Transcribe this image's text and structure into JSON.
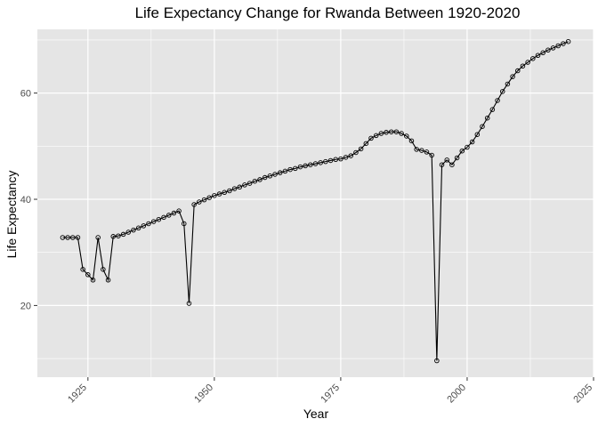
{
  "chart_data": {
    "type": "line",
    "title": "Life Expectancy Change for Rwanda Between 1920-2020",
    "xlabel": "Year",
    "ylabel": "Life Expectancy",
    "xlim": [
      1915,
      2025
    ],
    "ylim": [
      6.5,
      72.0
    ],
    "x_ticks": [
      1925,
      1950,
      1975,
      2000,
      2025
    ],
    "y_ticks": [
      20,
      40,
      60
    ],
    "grid": true,
    "background": "#e5e5e5",
    "grid_color": "#ffffff",
    "line_color": "#000000",
    "marker": "open-circle",
    "series": [
      {
        "x": [
          1920,
          1921,
          1922,
          1923,
          1924,
          1925,
          1926,
          1927,
          1928,
          1929,
          1930,
          1931,
          1932,
          1933,
          1934,
          1935,
          1936,
          1937,
          1938,
          1939,
          1940,
          1941,
          1942,
          1943,
          1944,
          1945,
          1946,
          1947,
          1948,
          1949,
          1950,
          1951,
          1952,
          1953,
          1954,
          1955,
          1956,
          1957,
          1958,
          1959,
          1960,
          1961,
          1962,
          1963,
          1964,
          1965,
          1966,
          1967,
          1968,
          1969,
          1970,
          1971,
          1972,
          1973,
          1974,
          1975,
          1976,
          1977,
          1978,
          1979,
          1980,
          1981,
          1982,
          1983,
          1984,
          1985,
          1986,
          1987,
          1988,
          1989,
          1990,
          1991,
          1992,
          1993,
          1994,
          1995,
          1996,
          1997,
          1998,
          1999,
          2000,
          2001,
          2002,
          2003,
          2004,
          2005,
          2006,
          2007,
          2008,
          2009,
          2010,
          2011,
          2012,
          2013,
          2014,
          2015,
          2016,
          2017,
          2018,
          2019,
          2020
        ],
        "y": [
          32.8,
          32.8,
          32.8,
          32.8,
          26.8,
          25.8,
          24.8,
          32.8,
          26.8,
          24.8,
          33.0,
          33.1,
          33.4,
          33.8,
          34.2,
          34.6,
          35.0,
          35.4,
          35.8,
          36.2,
          36.6,
          37.0,
          37.4,
          37.8,
          35.4,
          20.4,
          39.0,
          39.5,
          39.9,
          40.3,
          40.7,
          41.0,
          41.3,
          41.6,
          42.0,
          42.3,
          42.7,
          43.0,
          43.4,
          43.7,
          44.1,
          44.4,
          44.7,
          45.0,
          45.3,
          45.6,
          45.8,
          46.1,
          46.3,
          46.5,
          46.7,
          46.9,
          47.1,
          47.3,
          47.5,
          47.6,
          47.9,
          48.2,
          48.8,
          49.5,
          50.5,
          51.5,
          52.0,
          52.4,
          52.6,
          52.7,
          52.7,
          52.4,
          51.9,
          51.0,
          49.4,
          49.2,
          48.9,
          48.3,
          9.6,
          46.5,
          47.4,
          46.5,
          47.8,
          49.1,
          49.8,
          50.8,
          52.2,
          53.7,
          55.3,
          56.9,
          58.6,
          60.3,
          61.7,
          63.1,
          64.2,
          65.1,
          65.8,
          66.5,
          67.1,
          67.6,
          68.1,
          68.5,
          68.9,
          69.3,
          69.7
        ]
      }
    ]
  }
}
